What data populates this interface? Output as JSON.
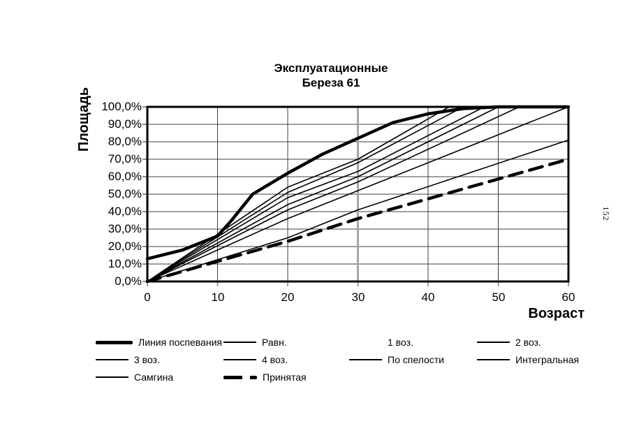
{
  "page": {
    "number": "152"
  },
  "chart_data": {
    "type": "line",
    "title": "Эксплуатационные",
    "subtitle": "Береза 61",
    "xlabel": "Возраст",
    "ylabel": "Площадь",
    "xlim": [
      0,
      60
    ],
    "ylim": [
      0,
      100
    ],
    "grid": true,
    "legend_position": "bottom",
    "x_ticks": [
      0,
      10,
      20,
      30,
      40,
      50,
      60
    ],
    "x_tick_labels": [
      "0",
      "10",
      "20",
      "30",
      "40",
      "50",
      "60"
    ],
    "y_ticks": [
      100,
      90,
      80,
      70,
      60,
      50,
      40,
      30,
      20,
      10,
      0
    ],
    "y_tick_labels": [
      "100,0%",
      "90,0%",
      "80,0%",
      "70,0%",
      "60,0%",
      "50,0%",
      "40,0%",
      "30,0%",
      "20,0%",
      "10,0%",
      "0,0%"
    ],
    "highlight_gridlines_x": [
      30,
      60
    ],
    "colors": {
      "line": "#000000",
      "grid": "#3c3c3c",
      "grid_highlight": "#a6a6a6"
    },
    "series": [
      {
        "name": "Линия поспевания",
        "style": "thick",
        "points": [
          [
            0,
            13
          ],
          [
            5,
            18
          ],
          [
            10,
            26
          ],
          [
            12,
            35
          ],
          [
            15,
            50
          ],
          [
            20,
            62
          ],
          [
            25,
            73
          ],
          [
            30,
            82
          ],
          [
            35,
            91
          ],
          [
            40,
            96
          ],
          [
            45,
            99
          ],
          [
            50,
            100
          ],
          [
            60,
            100
          ]
        ]
      },
      {
        "name": "Равн.",
        "style": "thin",
        "points": [
          [
            0,
            0
          ],
          [
            20,
            36
          ],
          [
            30,
            52
          ],
          [
            60,
            100
          ]
        ]
      },
      {
        "name": "1 воз.",
        "style": "none",
        "points": []
      },
      {
        "name": "2 воз.",
        "style": "thin",
        "points": [
          [
            0,
            0
          ],
          [
            20,
            54
          ],
          [
            30,
            70
          ],
          [
            43,
            100
          ],
          [
            60,
            100
          ]
        ]
      },
      {
        "name": "3 воз.",
        "style": "thin",
        "points": [
          [
            0,
            0
          ],
          [
            20,
            51
          ],
          [
            30,
            68
          ],
          [
            45,
            100
          ],
          [
            60,
            100
          ]
        ]
      },
      {
        "name": "4 воз.",
        "style": "thin",
        "points": [
          [
            0,
            0
          ],
          [
            20,
            48
          ],
          [
            30,
            63
          ],
          [
            48,
            100
          ],
          [
            60,
            100
          ]
        ]
      },
      {
        "name": "По спелости",
        "style": "thin",
        "points": [
          [
            0,
            0
          ],
          [
            20,
            44
          ],
          [
            30,
            60
          ],
          [
            50,
            100
          ],
          [
            60,
            100
          ]
        ]
      },
      {
        "name": "Интегральная",
        "style": "thin",
        "points": [
          [
            0,
            0
          ],
          [
            20,
            41
          ],
          [
            30,
            57
          ],
          [
            53,
            100
          ],
          [
            60,
            100
          ]
        ]
      },
      {
        "name": "Самгина",
        "style": "thin",
        "points": [
          [
            0,
            0
          ],
          [
            20,
            25
          ],
          [
            30,
            41
          ],
          [
            60,
            81
          ]
        ]
      },
      {
        "name": "Принятая",
        "style": "dashed",
        "points": [
          [
            0,
            0
          ],
          [
            20,
            23
          ],
          [
            30,
            36
          ],
          [
            60,
            70
          ]
        ]
      }
    ]
  }
}
